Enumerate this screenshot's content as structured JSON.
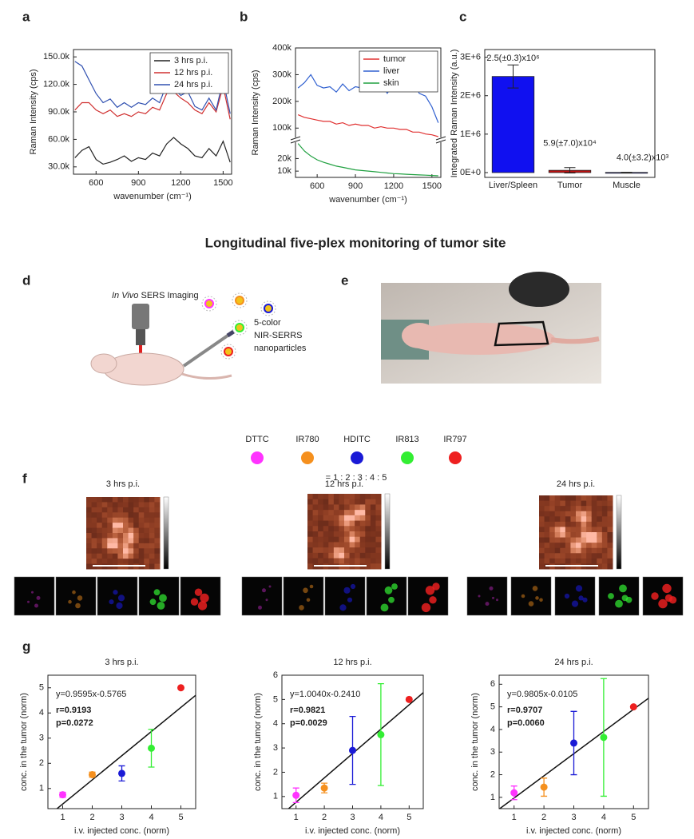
{
  "heading": "Longitudinal five-plex monitoring of tumor site",
  "panel_labels": [
    "a",
    "b",
    "c",
    "d",
    "e",
    "f",
    "g"
  ],
  "schematic": {
    "imaging_italic": "In Vivo",
    "imaging_rest": " SERS Imaging",
    "nanoparticle_lines": [
      "5-color",
      "NIR-SERRS",
      "nanoparticles"
    ]
  },
  "dyes": {
    "names": [
      "DTTC",
      "IR780",
      "HDITC",
      "IR813",
      "IR797"
    ],
    "colors": [
      "#ff33ff",
      "#f5901e",
      "#1a1ad6",
      "#33ee33",
      "#ee2020"
    ],
    "ratio": "= 1 : 2 : 3 : 4 : 5"
  },
  "imaging": {
    "timepoints": [
      "3 hrs p.i.",
      "12 hrs p.i.",
      "24 hrs p.i."
    ]
  },
  "chart_data": [
    {
      "type": "line",
      "x_label": "wavenumber (cm⁻¹)",
      "y_label": "Raman Intensity (cps)",
      "legend": "upper right",
      "x": [
        450,
        500,
        550,
        600,
        650,
        700,
        750,
        800,
        850,
        900,
        950,
        1000,
        1050,
        1100,
        1150,
        1200,
        1250,
        1300,
        1350,
        1400,
        1450,
        1500,
        1550
      ],
      "series": [
        {
          "name": "3 hrs p.i.",
          "color": "#222222",
          "values": [
            40000,
            48000,
            52000,
            38000,
            33000,
            35000,
            38000,
            42000,
            36000,
            40000,
            38000,
            45000,
            42000,
            55000,
            62000,
            55000,
            50000,
            42000,
            40000,
            50000,
            42000,
            58000,
            35000
          ]
        },
        {
          "name": "12 hrs p.i.",
          "color": "#d03030",
          "values": [
            92000,
            100000,
            100000,
            92000,
            88000,
            92000,
            85000,
            88000,
            85000,
            90000,
            88000,
            95000,
            92000,
            110000,
            112000,
            105000,
            100000,
            92000,
            88000,
            100000,
            90000,
            118000,
            82000
          ]
        },
        {
          "name": "24 hrs p.i.",
          "color": "#3050b0",
          "values": [
            145000,
            140000,
            125000,
            110000,
            100000,
            104000,
            95000,
            100000,
            95000,
            100000,
            98000,
            105000,
            100000,
            120000,
            115000,
            108000,
            112000,
            96000,
            92000,
            105000,
            92000,
            125000,
            88000
          ]
        }
      ],
      "xlim": [
        440,
        1560
      ],
      "ylim": [
        22000,
        158000
      ],
      "xticks": [
        600,
        900,
        1200,
        1500
      ],
      "yticks": [
        {
          "value": 30000,
          "label": "30.0k"
        },
        {
          "value": 60000,
          "label": "60.0k"
        },
        {
          "value": 90000,
          "label": "90.0k"
        },
        {
          "value": 120000,
          "label": "120.0k"
        },
        {
          "value": 150000,
          "label": "150.0k"
        }
      ]
    },
    {
      "type": "line",
      "x_label": "wavenumber (cm⁻¹)",
      "y_label": "Raman Intensity (cps)",
      "legend": "upper right",
      "x": [
        450,
        500,
        550,
        600,
        650,
        700,
        750,
        800,
        850,
        900,
        950,
        1000,
        1050,
        1100,
        1150,
        1200,
        1250,
        1300,
        1350,
        1400,
        1450,
        1500,
        1550
      ],
      "series": [
        {
          "name": "tumor",
          "color": "#e03030",
          "values": [
            150000,
            140000,
            135000,
            130000,
            125000,
            125000,
            115000,
            120000,
            110000,
            115000,
            110000,
            110000,
            100000,
            105000,
            100000,
            100000,
            95000,
            95000,
            85000,
            85000,
            78000,
            75000,
            68000
          ]
        },
        {
          "name": "liver",
          "color": "#3060d0",
          "values": [
            250000,
            270000,
            300000,
            260000,
            250000,
            255000,
            235000,
            265000,
            240000,
            255000,
            250000,
            275000,
            240000,
            270000,
            230000,
            265000,
            260000,
            245000,
            290000,
            230000,
            220000,
            180000,
            120000
          ]
        },
        {
          "name": "skin",
          "color": "#20a040",
          "values": [
            32000,
            26000,
            22000,
            19000,
            17000,
            15500,
            14000,
            13000,
            12000,
            11000,
            10500,
            10000,
            9500,
            9000,
            8500,
            8000,
            7800,
            7500,
            7200,
            7000,
            6800,
            6500,
            6300
          ]
        }
      ],
      "xlim": [
        430,
        1570
      ],
      "ylim": [
        5000,
        400000
      ],
      "axis_break": [
        33000,
        65000
      ],
      "xticks": [
        600,
        900,
        1200,
        1500
      ],
      "yticks": [
        {
          "value": 10000,
          "label": "10k"
        },
        {
          "value": 20000,
          "label": "20k"
        },
        {
          "value": 100000,
          "label": "100k"
        },
        {
          "value": 200000,
          "label": "200k"
        },
        {
          "value": 300000,
          "label": "300k"
        },
        {
          "value": 400000,
          "label": "400k"
        }
      ]
    },
    {
      "type": "bar",
      "y_label": "Integrated Raman Intensity (a.u.)",
      "categories": [
        "Liver/Spleen",
        "Tumor",
        "Muscle"
      ],
      "values": [
        2500000,
        59000,
        4000
      ],
      "errors": [
        300000,
        70000,
        3200
      ],
      "value_labels": [
        "2.5(±0.3)x10⁶",
        "5.9(±7.0)x10⁴",
        "4.0(±3.2)x10³"
      ],
      "colors": [
        "#1010f0",
        "#c01010",
        "#1010f0"
      ],
      "ylim": [
        -125000,
        3200000
      ],
      "yticks": [
        {
          "value": 0,
          "label": "0E+0"
        },
        {
          "value": 1000000,
          "label": "1E+6"
        },
        {
          "value": 2000000,
          "label": "2E+6"
        },
        {
          "value": 3000000,
          "label": "3E+6"
        }
      ]
    },
    {
      "type": "scatter",
      "title": "3 hrs p.i.",
      "x_label": "i.v. injected conc. (norm)",
      "y_label": "conc. in the tumor (norm)",
      "x": [
        1,
        2,
        3,
        4,
        5
      ],
      "values": [
        0.75,
        1.55,
        1.6,
        2.6,
        5.0
      ],
      "errors": [
        0.1,
        0.1,
        0.3,
        0.75,
        0
      ],
      "colors": [
        "#ff33ff",
        "#f5901e",
        "#1a1ad6",
        "#33ee33",
        "#ee2020"
      ],
      "fit_slope": 0.9595,
      "fit_intercept": -0.5765,
      "fit_label": "y=0.9595x-0.5765",
      "r_label": "r=0.9193",
      "p_label": "p=0.0272",
      "xlim": [
        0.5,
        5.5
      ],
      "ylim": [
        0.2,
        5.5
      ],
      "xticks": [
        1,
        2,
        3,
        4,
        5
      ],
      "yticks": [
        1,
        2,
        3,
        4,
        5
      ]
    },
    {
      "type": "scatter",
      "title": "12 hrs p.i.",
      "x_label": "i.v. injected conc. (norm)",
      "y_label": "conc. in the tumor (norm)",
      "x": [
        1,
        2,
        3,
        4,
        5
      ],
      "values": [
        1.05,
        1.35,
        2.9,
        3.55,
        5.0
      ],
      "errors": [
        0.3,
        0.2,
        1.4,
        2.1,
        0
      ],
      "colors": [
        "#ff33ff",
        "#f5901e",
        "#1a1ad6",
        "#33ee33",
        "#ee2020"
      ],
      "fit_slope": 1.004,
      "fit_intercept": -0.241,
      "fit_label": "y=1.0040x-0.2410",
      "r_label": "r=0.9821",
      "p_label": "p=0.0029",
      "xlim": [
        0.5,
        5.5
      ],
      "ylim": [
        0.5,
        6
      ],
      "xticks": [
        1,
        2,
        3,
        4,
        5
      ],
      "yticks": [
        1,
        2,
        3,
        4,
        5,
        6
      ]
    },
    {
      "type": "scatter",
      "title": "24 hrs p.i.",
      "x_label": "i.v. injected conc. (norm)",
      "y_label": "conc. in the tumor (norm)",
      "x": [
        1,
        2,
        3,
        4,
        5
      ],
      "values": [
        1.2,
        1.45,
        3.4,
        3.65,
        5.0
      ],
      "errors": [
        0.3,
        0.4,
        1.4,
        2.6,
        0
      ],
      "colors": [
        "#ff33ff",
        "#f5901e",
        "#1a1ad6",
        "#33ee33",
        "#ee2020"
      ],
      "fit_slope": 0.9805,
      "fit_intercept": -0.0105,
      "fit_label": "y=0.9805x-0.0105",
      "r_label": "r=0.9707",
      "p_label": "p=0.0060",
      "xlim": [
        0.5,
        5.5
      ],
      "ylim": [
        0.5,
        6.4
      ],
      "xticks": [
        1,
        2,
        3,
        4,
        5
      ],
      "yticks": [
        1,
        2,
        3,
        4,
        5,
        6
      ]
    }
  ]
}
